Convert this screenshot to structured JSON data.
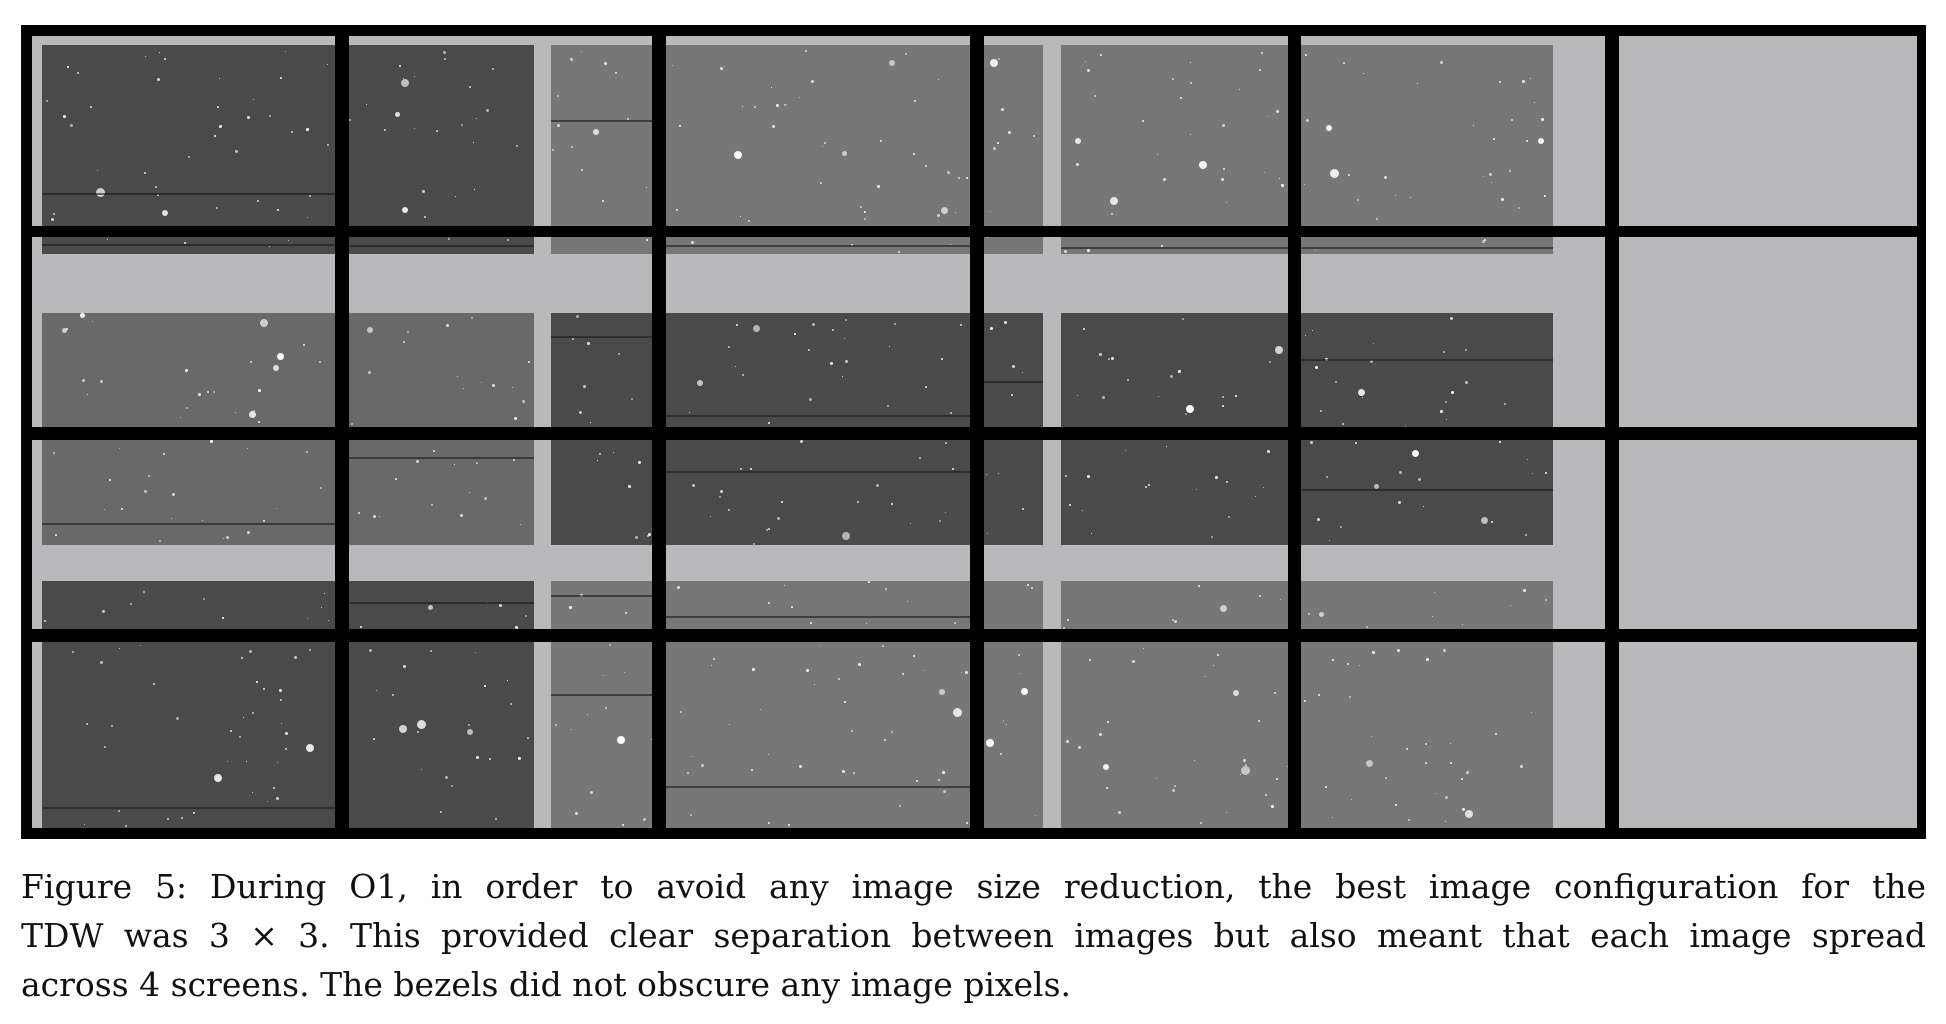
{
  "figure": {
    "caption_lines": [
      "Figure 5: During O1, in order to avoid any image size reduction, the best image configuration for the",
      "TDW was 3 × 3. This provided clear separation between images but also meant that each image spread",
      "across 4 screens. The bezels did not obscure any image pixels."
    ],
    "layout": {
      "screen_columns": 6,
      "screen_rows": 4,
      "image_grid": "3 × 3",
      "screens_per_image": 4
    },
    "colors": {
      "bezel": "#000000",
      "screen_background": "#b9b9bb",
      "image_tones": [
        "#5c5c5c",
        "#4a4a4a",
        "#777777",
        "#696969"
      ]
    }
  }
}
